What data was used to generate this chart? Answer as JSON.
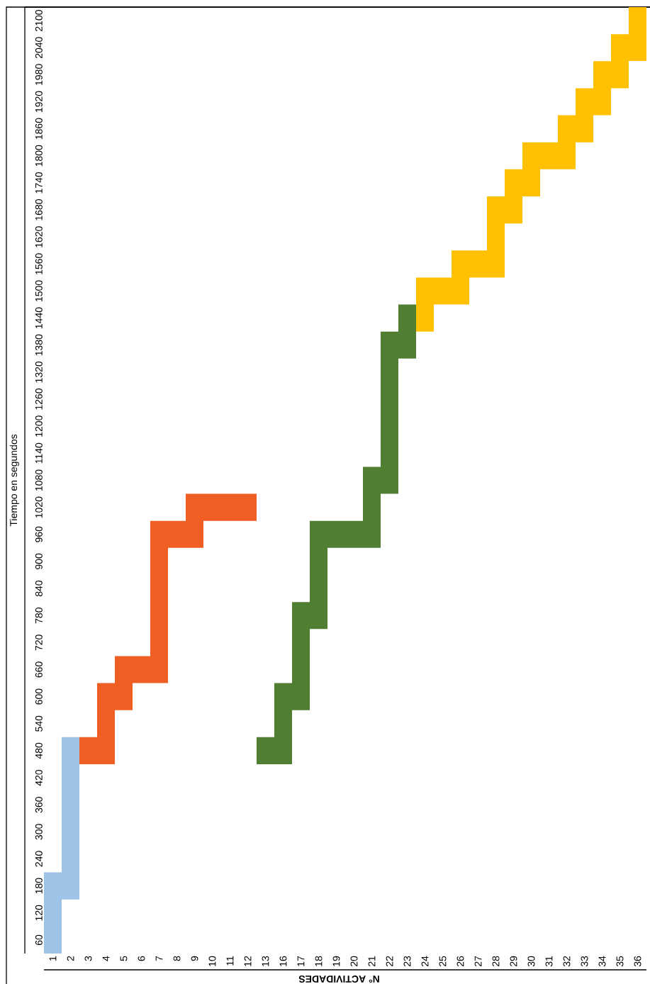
{
  "chart_data": {
    "type": "bar",
    "xlabel": "N° ACTIVIDADES",
    "ylabel": "Tiempo en segundos",
    "categories": [
      "1",
      "2",
      "3",
      "4",
      "5",
      "6",
      "7",
      "8",
      "9",
      "10",
      "11",
      "12",
      "13",
      "16",
      "17",
      "18",
      "19",
      "20",
      "21",
      "22",
      "23",
      "24",
      "25",
      "26",
      "27",
      "28",
      "29",
      "30",
      "31",
      "32",
      "33",
      "34",
      "35",
      "36"
    ],
    "base": [
      30,
      150,
      450,
      450,
      570,
      630,
      630,
      930,
      930,
      990,
      990,
      990,
      450,
      450,
      570,
      750,
      930,
      930,
      930,
      1050,
      1350,
      1410,
      1470,
      1470,
      1530,
      1530,
      1650,
      1710,
      1770,
      1770,
      1830,
      1890,
      1950,
      2010
    ],
    "values": [
      180,
      360,
      60,
      180,
      120,
      60,
      360,
      60,
      120,
      60,
      60,
      60,
      60,
      180,
      240,
      240,
      60,
      60,
      180,
      360,
      120,
      120,
      60,
      120,
      60,
      180,
      120,
      120,
      60,
      120,
      120,
      120,
      120,
      120
    ],
    "colors": [
      "#9dc3e6",
      "#9dc3e6",
      "#ef5f23",
      "#ef5f23",
      "#ef5f23",
      "#ef5f23",
      "#ef5f23",
      "#ef5f23",
      "#ef5f23",
      "#ef5f23",
      "#ef5f23",
      "#ef5f23",
      "#507e32",
      "#507e32",
      "#507e32",
      "#507e32",
      "#507e32",
      "#507e32",
      "#507e32",
      "#507e32",
      "#507e32",
      "#ffc000",
      "#ffc000",
      "#ffc000",
      "#ffc000",
      "#ffc000",
      "#ffc000",
      "#ffc000",
      "#ffc000",
      "#ffc000",
      "#ffc000",
      "#ffc000",
      "#ffc000",
      "#ffc000"
    ],
    "ylim": [
      30,
      2130
    ],
    "yticks": [
      60,
      120,
      180,
      240,
      300,
      360,
      420,
      480,
      540,
      600,
      660,
      720,
      780,
      840,
      900,
      960,
      1020,
      1080,
      1140,
      1200,
      1260,
      1320,
      1380,
      1440,
      1500,
      1560,
      1620,
      1680,
      1740,
      1800,
      1860,
      1920,
      1980,
      2040,
      2100
    ]
  }
}
